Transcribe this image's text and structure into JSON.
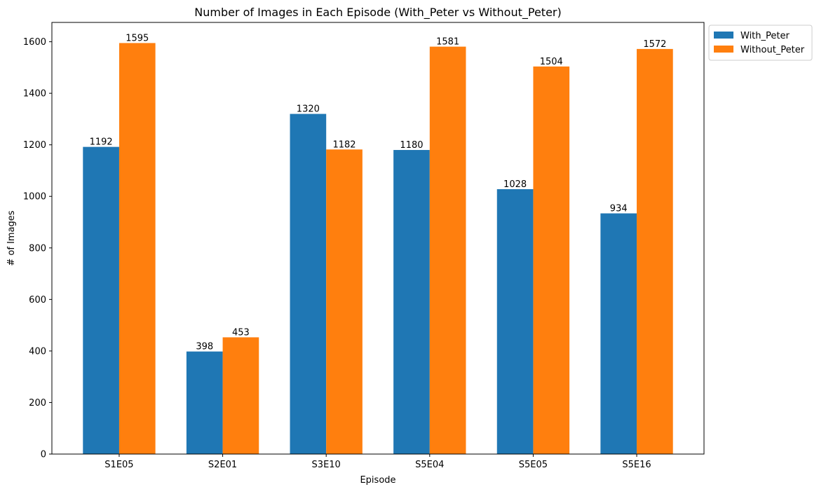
{
  "chart_data": {
    "type": "bar",
    "title": "Number of Images in Each Episode (With_Peter vs Without_Peter)",
    "xlabel": "Episode",
    "ylabel": "# of Images",
    "categories": [
      "S1E05",
      "S2E01",
      "S3E10",
      "S5E04",
      "S5E05",
      "S5E16"
    ],
    "series": [
      {
        "name": "With_Peter",
        "color": "#1f77b4",
        "values": [
          1192,
          398,
          1320,
          1180,
          1028,
          934
        ]
      },
      {
        "name": "Without_Peter",
        "color": "#ff7f0e",
        "values": [
          1595,
          453,
          1182,
          1581,
          1504,
          1572
        ]
      }
    ],
    "ylim": [
      0,
      1675
    ],
    "yticks": [
      0,
      200,
      400,
      600,
      800,
      1000,
      1200,
      1400,
      1600
    ],
    "grid": false,
    "legend_position": "outside-top-right",
    "data_labels": true
  }
}
